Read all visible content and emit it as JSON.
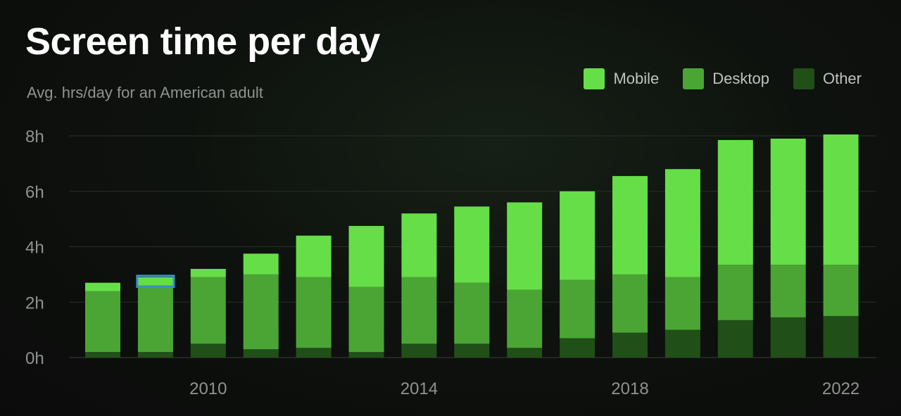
{
  "header": {
    "title": "Screen time per day",
    "subtitle": "Avg. hrs/day for an American adult"
  },
  "colors": {
    "mobile": "#66de48",
    "desktop": "#4aa535",
    "other": "#214f18",
    "grid": "#2a2e2a",
    "highlight": "#3a8fd0"
  },
  "legend": [
    {
      "name": "Mobile",
      "color": "#66de48"
    },
    {
      "name": "Desktop",
      "color": "#4aa535"
    },
    {
      "name": "Other",
      "color": "#214f18"
    }
  ],
  "chart_data": {
    "type": "bar",
    "stacked": true,
    "title": "Screen time per day",
    "subtitle": "Avg. hrs/day for an American adult",
    "xlabel": "",
    "ylabel": "",
    "ylim": [
      0,
      8
    ],
    "y_ticks": [
      0,
      2,
      4,
      6,
      8
    ],
    "y_tick_labels": [
      "0h",
      "2h",
      "4h",
      "6h",
      "8h"
    ],
    "categories": [
      "2008",
      "2009",
      "2010",
      "2011",
      "2012",
      "2013",
      "2014",
      "2015",
      "2016",
      "2017",
      "2018",
      "2019",
      "2020",
      "2021",
      "2022"
    ],
    "x_tick_labels": [
      "2010",
      "2014",
      "2018",
      "2022"
    ],
    "highlighted_category": "2009",
    "legend_position": "top-right",
    "grid": true,
    "series": [
      {
        "name": "Other",
        "values": [
          0.2,
          0.2,
          0.5,
          0.3,
          0.35,
          0.2,
          0.5,
          0.5,
          0.35,
          0.7,
          0.9,
          1.0,
          1.35,
          1.45,
          1.5
        ]
      },
      {
        "name": "Desktop",
        "values": [
          2.2,
          2.4,
          2.4,
          2.7,
          2.55,
          2.35,
          2.4,
          2.2,
          2.1,
          2.1,
          2.1,
          1.9,
          2.0,
          1.9,
          1.85
        ]
      },
      {
        "name": "Mobile",
        "values": [
          0.3,
          0.3,
          0.3,
          0.75,
          1.5,
          2.2,
          2.3,
          2.75,
          3.15,
          3.2,
          3.55,
          3.9,
          4.5,
          4.55,
          4.7
        ]
      }
    ]
  }
}
